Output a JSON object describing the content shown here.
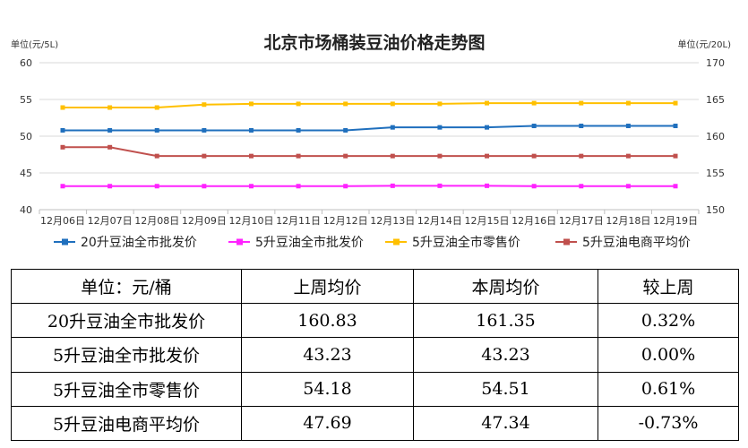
{
  "chart_data": {
    "type": "line",
    "title": "北京市场桶装豆油价格走势图",
    "y_left_label": "单位(元/5L)",
    "y_right_label": "单位(元/20L)",
    "y_left_lim": [
      40,
      60
    ],
    "y_left_ticks": [
      40,
      45,
      50,
      55,
      60
    ],
    "y_right_lim": [
      150,
      170
    ],
    "y_right_ticks": [
      150,
      155,
      160,
      165,
      170
    ],
    "grid": true,
    "legend_position": "bottom",
    "x": [
      "12月06日",
      "12月07日",
      "12月08日",
      "12月09日",
      "12月10日",
      "12月11日",
      "12月12日",
      "12月13日",
      "12月14日",
      "12月15日",
      "12月16日",
      "12月17日",
      "12月18日",
      "12月19日"
    ],
    "series": [
      {
        "name": "20升豆油全市批发价",
        "axis": "right",
        "color": "#1f6fbd",
        "values": [
          160.8,
          160.8,
          160.8,
          160.8,
          160.8,
          160.8,
          160.8,
          161.2,
          161.2,
          161.2,
          161.4,
          161.4,
          161.4,
          161.4
        ]
      },
      {
        "name": "5升豆油全市批发价",
        "axis": "left",
        "color": "#ff22ff",
        "values": [
          43.2,
          43.2,
          43.2,
          43.2,
          43.2,
          43.2,
          43.2,
          43.25,
          43.25,
          43.25,
          43.2,
          43.2,
          43.2,
          43.2
        ]
      },
      {
        "name": "5升豆油全市零售价",
        "axis": "left",
        "color": "#ffc000",
        "values": [
          53.9,
          53.9,
          53.9,
          54.3,
          54.4,
          54.4,
          54.4,
          54.4,
          54.4,
          54.5,
          54.5,
          54.5,
          54.5,
          54.5
        ]
      },
      {
        "name": "5升豆油电商平均价",
        "axis": "left",
        "color": "#c0504d",
        "values": [
          48.5,
          48.5,
          47.3,
          47.3,
          47.3,
          47.3,
          47.3,
          47.3,
          47.3,
          47.3,
          47.3,
          47.3,
          47.3,
          47.3
        ]
      }
    ]
  },
  "table": {
    "headers": [
      "单位：元/桶",
      "上周均价",
      "本周均价",
      "较上周"
    ],
    "rows": [
      [
        "20升豆油全市批发价",
        "160.83",
        "161.35",
        "0.32%"
      ],
      [
        "5升豆油全市批发价",
        "43.23",
        "43.23",
        "0.00%"
      ],
      [
        "5升豆油全市零售价",
        "54.18",
        "54.51",
        "0.61%"
      ],
      [
        "5升豆油电商平均价",
        "47.69",
        "47.34",
        "-0.73%"
      ]
    ]
  }
}
